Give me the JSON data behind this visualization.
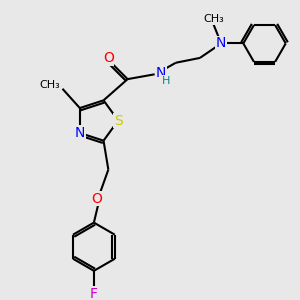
{
  "bg_color": "#e8e8e8",
  "atom_colors": {
    "N": "#0000ff",
    "O": "#ff0000",
    "S": "#cccc00",
    "F": "#cc00cc",
    "H": "#008888"
  },
  "bond_lw": 1.5,
  "font_size": 10
}
